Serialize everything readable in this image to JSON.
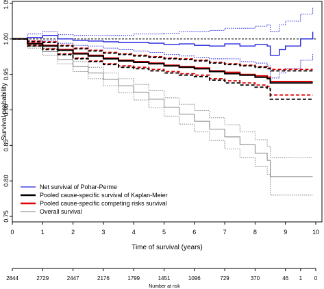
{
  "chart_data": {
    "type": "line",
    "title": "",
    "xlabel": "Time of survival (years)",
    "ylabel": "Survival probability",
    "xlim": [
      0,
      10
    ],
    "ylim": [
      0.75,
      1.05
    ],
    "x_ticks": [
      0,
      1,
      2,
      3,
      4,
      5,
      6,
      7,
      8,
      9,
      10
    ],
    "y_ticks": [
      0.75,
      0.8,
      0.85,
      0.9,
      0.95,
      1.0,
      1.05
    ],
    "y_tick_labels": [
      "0.75",
      "0.80",
      "0.85",
      "0.90",
      "0.95",
      "1.00",
      "1.05"
    ],
    "reference_line": {
      "y": 1.0,
      "style": "dotted",
      "color": "#000000"
    },
    "grid": false,
    "legend_placement": "bottom-left",
    "series": [
      {
        "name": "Net survival of Pohar-Perme",
        "color": "#2222dd",
        "x": [
          0,
          0.5,
          1,
          1.5,
          2,
          2.5,
          3,
          3.5,
          4,
          4.5,
          5,
          5.5,
          6,
          6.5,
          7,
          7.5,
          8,
          8.4,
          8.5,
          8.8,
          9,
          9.5,
          9.9
        ],
        "values": [
          1.0,
          1.002,
          1.005,
          1.0,
          0.998,
          0.997,
          0.996,
          0.995,
          0.995,
          0.994,
          0.992,
          0.993,
          0.991,
          0.99,
          0.993,
          0.99,
          0.992,
          0.99,
          0.977,
          0.985,
          0.99,
          1.0,
          1.01
        ],
        "ci_upper": [
          1.0,
          1.007,
          1.01,
          1.006,
          1.005,
          1.005,
          1.005,
          1.005,
          1.007,
          1.007,
          1.008,
          1.01,
          1.01,
          1.012,
          1.015,
          1.015,
          1.018,
          1.02,
          1.01,
          1.02,
          1.025,
          1.035,
          1.045
        ],
        "ci_lower": [
          1.0,
          0.997,
          0.998,
          0.994,
          0.991,
          0.99,
          0.987,
          0.985,
          0.983,
          0.981,
          0.978,
          0.976,
          0.974,
          0.972,
          0.972,
          0.968,
          0.966,
          0.962,
          0.945,
          0.952,
          0.958,
          0.97,
          0.98
        ]
      },
      {
        "name": "Pooled cause-specific survival of Kaplan-Meier",
        "color": "#000000",
        "x": [
          0,
          0.5,
          1,
          1.5,
          2,
          2.5,
          3,
          3.5,
          4,
          4.5,
          5,
          5.5,
          6,
          6.5,
          7,
          7.5,
          8,
          8.4,
          8.5,
          9,
          9.9
        ],
        "values": [
          1.0,
          0.993,
          0.99,
          0.984,
          0.979,
          0.976,
          0.972,
          0.969,
          0.967,
          0.965,
          0.962,
          0.96,
          0.958,
          0.954,
          0.951,
          0.949,
          0.946,
          0.944,
          0.938,
          0.938,
          0.938
        ],
        "ci_upper": [
          1.0,
          0.996,
          0.995,
          0.99,
          0.986,
          0.983,
          0.98,
          0.978,
          0.976,
          0.974,
          0.972,
          0.971,
          0.969,
          0.966,
          0.964,
          0.962,
          0.96,
          0.958,
          0.955,
          0.955,
          0.955
        ],
        "ci_lower": [
          1.0,
          0.99,
          0.985,
          0.978,
          0.972,
          0.968,
          0.964,
          0.96,
          0.958,
          0.955,
          0.952,
          0.949,
          0.947,
          0.942,
          0.938,
          0.935,
          0.932,
          0.93,
          0.915,
          0.915,
          0.915
        ]
      },
      {
        "name": "Pooled cause-specific competing risks survival",
        "color": "#dd0000",
        "x": [
          0,
          0.5,
          1,
          1.5,
          2,
          2.5,
          3,
          3.5,
          4,
          4.5,
          5,
          5.5,
          6,
          6.5,
          7,
          7.5,
          8,
          8.4,
          8.5,
          9,
          9.9
        ],
        "values": [
          1.0,
          0.994,
          0.991,
          0.985,
          0.98,
          0.977,
          0.973,
          0.97,
          0.968,
          0.966,
          0.963,
          0.961,
          0.959,
          0.955,
          0.953,
          0.95,
          0.948,
          0.946,
          0.94,
          0.94,
          0.94
        ],
        "ci_upper": [
          1.0,
          0.997,
          0.996,
          0.991,
          0.987,
          0.984,
          0.981,
          0.979,
          0.977,
          0.975,
          0.973,
          0.972,
          0.97,
          0.967,
          0.965,
          0.963,
          0.961,
          0.959,
          0.957,
          0.957,
          0.957
        ],
        "ci_lower": [
          1.0,
          0.991,
          0.986,
          0.979,
          0.973,
          0.969,
          0.965,
          0.962,
          0.96,
          0.957,
          0.954,
          0.951,
          0.949,
          0.944,
          0.941,
          0.938,
          0.935,
          0.933,
          0.921,
          0.921,
          0.921
        ]
      },
      {
        "name": "Overall survival",
        "color": "#808080",
        "x": [
          0,
          0.5,
          1,
          1.5,
          2,
          2.5,
          3,
          3.5,
          4,
          4.5,
          5,
          5.5,
          6,
          6.5,
          7,
          7.5,
          8,
          8.4,
          8.5,
          9,
          9.9
        ],
        "values": [
          1.0,
          0.99,
          0.982,
          0.971,
          0.961,
          0.952,
          0.943,
          0.934,
          0.925,
          0.915,
          0.904,
          0.894,
          0.884,
          0.873,
          0.862,
          0.851,
          0.839,
          0.829,
          0.806,
          0.806,
          0.806
        ],
        "ci_upper": [
          1.0,
          0.993,
          0.987,
          0.977,
          0.968,
          0.96,
          0.952,
          0.944,
          0.936,
          0.927,
          0.917,
          0.908,
          0.899,
          0.889,
          0.879,
          0.869,
          0.858,
          0.849,
          0.833,
          0.833,
          0.833
        ],
        "ci_lower": [
          1.0,
          0.987,
          0.977,
          0.965,
          0.954,
          0.944,
          0.934,
          0.924,
          0.914,
          0.903,
          0.891,
          0.88,
          0.869,
          0.857,
          0.845,
          0.833,
          0.82,
          0.809,
          0.78,
          0.78,
          0.78
        ]
      }
    ],
    "risk_table": {
      "title": "Number at risk",
      "x": [
        0,
        1,
        2,
        3,
        4,
        5,
        6,
        7,
        8,
        9,
        9.5,
        10
      ],
      "labels": [
        "2844",
        "2729",
        "2447",
        "2176",
        "1799",
        "1451",
        "1096",
        "729",
        "370",
        "46",
        "1",
        "0"
      ]
    }
  }
}
